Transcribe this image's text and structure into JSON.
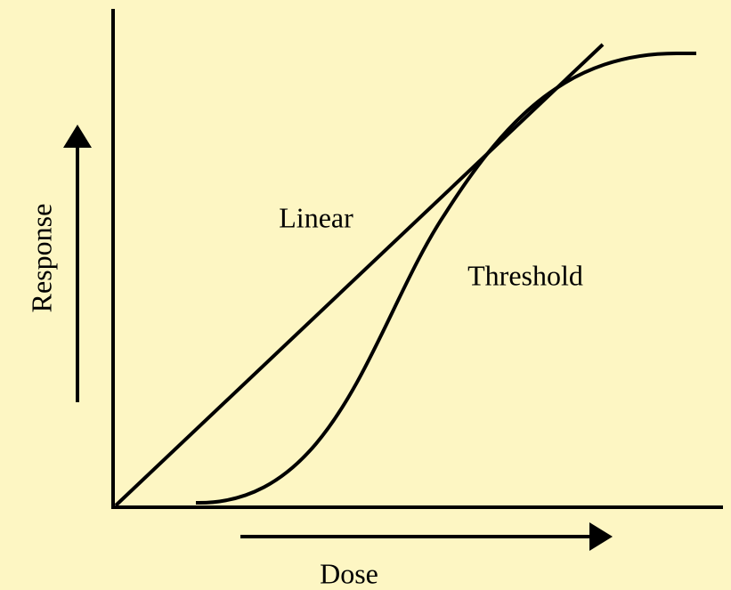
{
  "y_axis": {
    "label": "Response"
  },
  "x_axis": {
    "label": "Dose"
  },
  "curves": [
    {
      "label": "Linear"
    },
    {
      "label": "Threshold"
    }
  ]
}
